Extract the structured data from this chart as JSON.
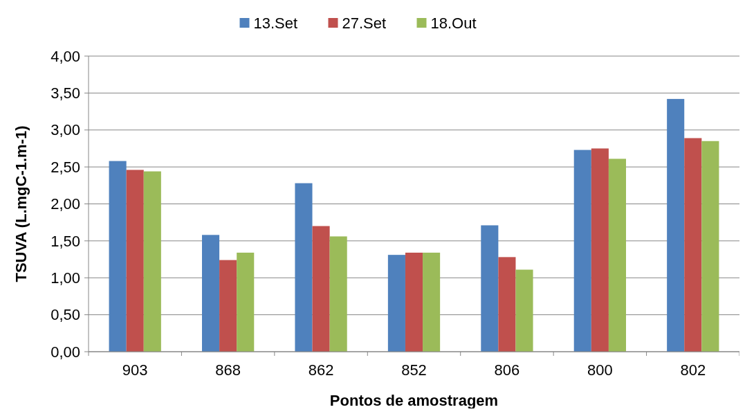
{
  "chart_data": {
    "type": "bar",
    "categories": [
      "903",
      "868",
      "862",
      "852",
      "806",
      "800",
      "802"
    ],
    "series": [
      {
        "name": "13.Set",
        "color": "#4f81bd",
        "values": [
          2.58,
          1.58,
          2.28,
          1.31,
          1.71,
          2.73,
          3.42
        ]
      },
      {
        "name": "27.Set",
        "color": "#c0504d",
        "values": [
          2.46,
          1.24,
          1.7,
          1.34,
          1.28,
          2.75,
          2.89
        ]
      },
      {
        "name": "18.Out",
        "color": "#9bbb59",
        "values": [
          2.44,
          1.34,
          1.56,
          1.34,
          1.11,
          2.61,
          2.85
        ]
      }
    ],
    "ylim": [
      0,
      4
    ],
    "yticks": [
      {
        "value": 0,
        "label": "0,00"
      },
      {
        "value": 0.5,
        "label": "0,50"
      },
      {
        "value": 1,
        "label": "1,00"
      },
      {
        "value": 1.5,
        "label": "1,50"
      },
      {
        "value": 2,
        "label": "2,00"
      },
      {
        "value": 2.5,
        "label": "2,50"
      },
      {
        "value": 3,
        "label": "3,00"
      },
      {
        "value": 3.5,
        "label": "3,50"
      },
      {
        "value": 4,
        "label": "4,00"
      }
    ],
    "xlabel": "Pontos de amostragem",
    "ylabel": "TSUVA (L.mgC-1.m-1)",
    "grid": "y",
    "legend": "top"
  }
}
